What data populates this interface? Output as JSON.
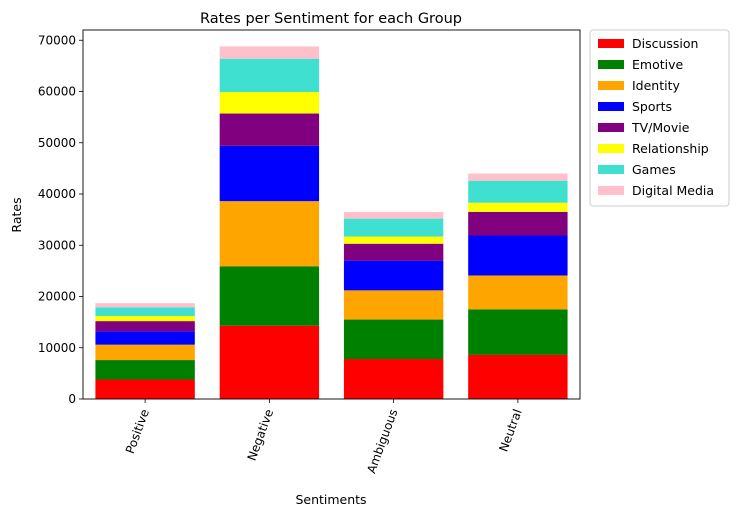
{
  "chart_data": {
    "type": "bar",
    "stacked": true,
    "title": "Rates per Sentiment for each Group",
    "xlabel": "Sentiments",
    "ylabel": "Rates",
    "ylim": [
      0,
      72000
    ],
    "yticks": [
      0,
      10000,
      20000,
      30000,
      40000,
      50000,
      60000,
      70000
    ],
    "categories": [
      "Positive",
      "Negative",
      "Ambiguous",
      "Neutral"
    ],
    "legend_position": "outside-top-right",
    "grid": false,
    "series": [
      {
        "name": "Discussion",
        "color": "#ff0000",
        "values": [
          3800,
          14300,
          7800,
          8600
        ]
      },
      {
        "name": "Emotive",
        "color": "#008000",
        "values": [
          3800,
          11600,
          7700,
          8900
        ]
      },
      {
        "name": "Identity",
        "color": "#ffa500",
        "values": [
          3000,
          12700,
          5700,
          6600
        ]
      },
      {
        "name": "Sports",
        "color": "#0000ff",
        "values": [
          2600,
          10800,
          5800,
          7800
        ]
      },
      {
        "name": "TV/Movie",
        "color": "#800080",
        "values": [
          2000,
          6300,
          3300,
          4600
        ]
      },
      {
        "name": "Relationship",
        "color": "#ffff00",
        "values": [
          1000,
          4200,
          1400,
          1800
        ]
      },
      {
        "name": "Games",
        "color": "#40e0d0",
        "values": [
          1700,
          6500,
          3500,
          4300
        ]
      },
      {
        "name": "Digital Media",
        "color": "#ffc0cb",
        "values": [
          800,
          2400,
          1300,
          1400
        ]
      }
    ]
  }
}
